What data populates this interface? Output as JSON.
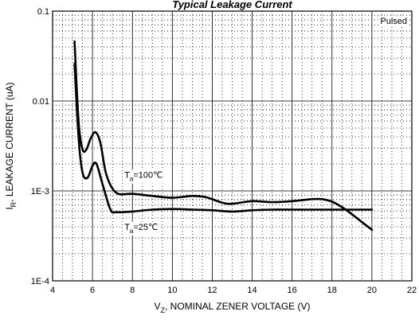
{
  "chart_data": {
    "type": "line",
    "title": "Typical Leakage Current",
    "xlabel": {
      "main": "V",
      "sub": "Z",
      "rest": ", NOMINAL ZENER VOLTAGE (V)"
    },
    "ylabel": {
      "main": "I",
      "sub": "R",
      "rest": ", LEAKAGE CURRENT (uA)"
    },
    "xlim": [
      4,
      22
    ],
    "ylim": [
      0.0001,
      0.1
    ],
    "yscale": "log",
    "grid": true,
    "xticks": [
      "4",
      "6",
      "8",
      "10",
      "12",
      "14",
      "16",
      "18",
      "20",
      "22"
    ],
    "yticks": [
      {
        "value": 0.1,
        "label": "0.1"
      },
      {
        "value": 0.01,
        "label": "0.01"
      },
      {
        "value": 0.001,
        "label": "1E-3"
      },
      {
        "value": 0.0001,
        "label": "1E-4"
      }
    ],
    "annotations": {
      "pulsed": "Pulsed",
      "t100": {
        "main": "T",
        "sub": "a",
        "rest": "=100℃"
      },
      "t25": {
        "main": "T",
        "sub": "a",
        "rest": "=25℃"
      }
    },
    "series": [
      {
        "name": "Ta=100℃",
        "points": [
          [
            5.1,
            0.046
          ],
          [
            5.3,
            0.006
          ],
          [
            5.5,
            0.0029
          ],
          [
            5.7,
            0.0029
          ],
          [
            5.9,
            0.0038
          ],
          [
            6.15,
            0.0045
          ],
          [
            6.4,
            0.0034
          ],
          [
            6.7,
            0.0015
          ],
          [
            7.2,
            0.00095
          ],
          [
            8,
            0.00093
          ],
          [
            9,
            0.00088
          ],
          [
            10,
            0.00084
          ],
          [
            11,
            0.00088
          ],
          [
            11.7,
            0.00085
          ],
          [
            12.5,
            0.00074
          ],
          [
            13,
            0.00072
          ],
          [
            14,
            0.00077
          ],
          [
            15,
            0.00075
          ],
          [
            16,
            0.00077
          ],
          [
            17,
            0.00081
          ],
          [
            17.5,
            0.00081
          ],
          [
            18,
            0.00076
          ],
          [
            18.5,
            0.00066
          ],
          [
            19,
            0.00055
          ],
          [
            19.5,
            0.00045
          ],
          [
            20,
            0.00037
          ]
        ]
      },
      {
        "name": "Ta=25℃",
        "points": [
          [
            5.1,
            0.026
          ],
          [
            5.3,
            0.004
          ],
          [
            5.5,
            0.0016
          ],
          [
            5.75,
            0.0014
          ],
          [
            6,
            0.0019
          ],
          [
            6.2,
            0.002
          ],
          [
            6.5,
            0.0012
          ],
          [
            6.9,
            0.00062
          ],
          [
            7.2,
            0.00058
          ],
          [
            8,
            0.00059
          ],
          [
            9,
            0.00062
          ],
          [
            10,
            0.00063
          ],
          [
            11,
            0.00062
          ],
          [
            12,
            0.00061
          ],
          [
            13,
            0.00059
          ],
          [
            14,
            0.00061
          ],
          [
            15,
            0.00062
          ],
          [
            16,
            0.00062
          ],
          [
            17,
            0.00062
          ],
          [
            18,
            0.00062
          ],
          [
            19,
            0.00062
          ],
          [
            20,
            0.00062
          ]
        ]
      }
    ]
  }
}
